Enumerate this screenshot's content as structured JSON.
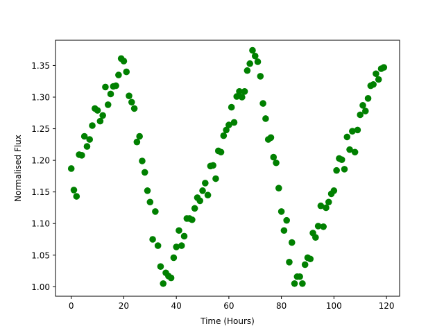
{
  "chart_data": {
    "type": "scatter",
    "title": "",
    "xlabel": "Time (Hours)",
    "ylabel": "Normalised Flux",
    "xlim": [
      -6,
      125
    ],
    "ylim": [
      0.985,
      1.39
    ],
    "xticks": [
      0,
      20,
      40,
      60,
      80,
      100,
      120
    ],
    "yticks": [
      1.0,
      1.05,
      1.1,
      1.15,
      1.2,
      1.25,
      1.3,
      1.35
    ],
    "grid": false,
    "colors": {
      "points": "#008000"
    },
    "series": [
      {
        "x": [
          0,
          1,
          2,
          3,
          4,
          5,
          6,
          7,
          8,
          9,
          10,
          11,
          12,
          13,
          14,
          15,
          16,
          17,
          18,
          19,
          20,
          21,
          22,
          23,
          24,
          25,
          26,
          27,
          28,
          29,
          30,
          31,
          32,
          33,
          34,
          35,
          36,
          37,
          38,
          39,
          40,
          41,
          42,
          43,
          44,
          45,
          46,
          47,
          48,
          49,
          50,
          51,
          52,
          53,
          54,
          55,
          56,
          57,
          58,
          59,
          60,
          61,
          62,
          63,
          64,
          65,
          66,
          67,
          68,
          69,
          70,
          71,
          72,
          73,
          74,
          75,
          76,
          77,
          78,
          79,
          80,
          81,
          82,
          83,
          84,
          85,
          86,
          87,
          88,
          89,
          90,
          91,
          92,
          93,
          94,
          95,
          96,
          97,
          98,
          99,
          100,
          101,
          102,
          103,
          104,
          105,
          106,
          107,
          108,
          109,
          110,
          111,
          112,
          113,
          114,
          115,
          116,
          117,
          118,
          119
        ],
        "y": [
          1.187,
          1.153,
          1.143,
          1.209,
          1.208,
          1.238,
          1.222,
          1.233,
          1.255,
          1.282,
          1.279,
          1.262,
          1.271,
          1.316,
          1.288,
          1.305,
          1.317,
          1.318,
          1.335,
          1.361,
          1.357,
          1.34,
          1.302,
          1.292,
          1.282,
          1.229,
          1.238,
          1.199,
          1.181,
          1.152,
          1.134,
          1.075,
          1.119,
          1.065,
          1.032,
          1.005,
          1.022,
          1.017,
          1.014,
          1.046,
          1.063,
          1.089,
          1.065,
          1.08,
          1.108,
          1.108,
          1.106,
          1.124,
          1.141,
          1.136,
          1.152,
          1.164,
          1.145,
          1.191,
          1.192,
          1.171,
          1.215,
          1.213,
          1.239,
          1.248,
          1.256,
          1.284,
          1.26,
          1.301,
          1.309,
          1.3,
          1.309,
          1.342,
          1.353,
          1.374,
          1.365,
          1.356,
          1.333,
          1.29,
          1.266,
          1.233,
          1.236,
          1.205,
          1.196,
          1.156,
          1.119,
          1.089,
          1.105,
          1.039,
          1.07,
          1.005,
          1.016,
          1.016,
          1.005,
          1.035,
          1.046,
          1.044,
          1.085,
          1.078,
          1.096,
          1.128,
          1.095,
          1.125,
          1.134,
          1.147,
          1.152,
          1.184,
          1.203,
          1.201,
          1.186,
          1.237,
          1.217,
          1.246,
          1.213,
          1.248,
          1.272,
          1.287,
          1.278,
          1.298,
          1.318,
          1.32,
          1.337,
          1.328,
          1.345,
          1.347
        ]
      }
    ]
  }
}
